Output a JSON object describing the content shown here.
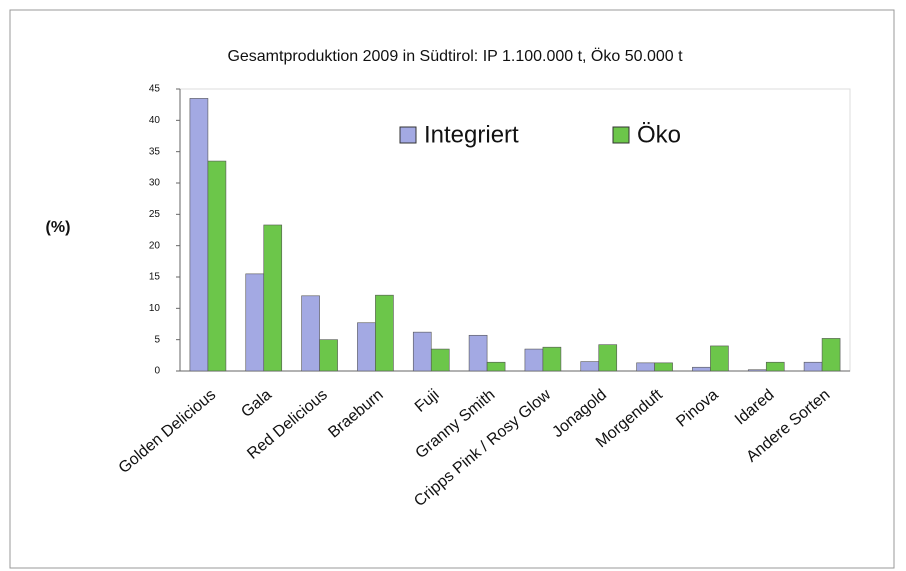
{
  "chart_data": {
    "type": "bar",
    "title": "Gesamtproduktion 2009 in Südtirol: IP 1.100.000 t, Öko 50.000 t",
    "y_label": "(%)",
    "categories": [
      "Golden Delicious",
      "Gala",
      "Red Delicious",
      "Braeburn",
      "Fuji",
      "Granny Smith",
      "Cripps Pink / Rosy Glow",
      "Jonagold",
      "Morgenduft",
      "Pinova",
      "Idared",
      "Andere Sorten"
    ],
    "series": [
      {
        "name": "Integriert",
        "color": "#a3a9e3",
        "values": [
          43.5,
          15.5,
          12,
          7.7,
          6.2,
          5.7,
          3.5,
          1.5,
          1.3,
          0.6,
          0.2,
          1.4
        ]
      },
      {
        "name": "Öko",
        "color": "#6cc64a",
        "values": [
          33.5,
          23.3,
          5,
          12.1,
          3.5,
          1.4,
          3.8,
          4.2,
          1.3,
          4.0,
          1.4,
          5.2
        ]
      }
    ],
    "ylim": [
      0,
      45
    ],
    "yticks": [
      0,
      5,
      10,
      15,
      20,
      25,
      30,
      35,
      40,
      45
    ],
    "legend": "top"
  }
}
